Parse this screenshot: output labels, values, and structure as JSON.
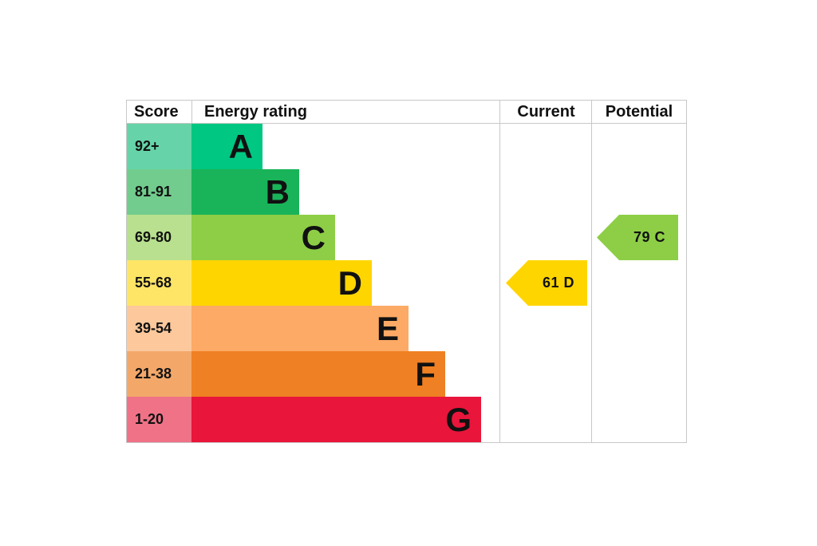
{
  "chart_data": {
    "type": "bar",
    "headers": {
      "score": "Score",
      "rating": "Energy rating",
      "current": "Current",
      "potential": "Potential"
    },
    "bands": [
      {
        "letter": "A",
        "range": "92+",
        "color": "#00c781",
        "light": "#66d4a8"
      },
      {
        "letter": "B",
        "range": "81-91",
        "color": "#19b459",
        "light": "#72cc8e"
      },
      {
        "letter": "C",
        "range": "69-80",
        "color": "#8dce46",
        "light": "#b8e08e"
      },
      {
        "letter": "D",
        "range": "55-68",
        "color": "#ffd500",
        "light": "#ffe566"
      },
      {
        "letter": "E",
        "range": "39-54",
        "color": "#fcaa65",
        "light": "#fcc89c"
      },
      {
        "letter": "F",
        "range": "21-38",
        "color": "#ef8023",
        "light": "#f3a86a"
      },
      {
        "letter": "G",
        "range": "1-20",
        "color": "#e9153b",
        "light": "#f07287"
      }
    ],
    "current": {
      "value": "61",
      "band": "D"
    },
    "potential": {
      "value": "79",
      "band": "C"
    }
  }
}
